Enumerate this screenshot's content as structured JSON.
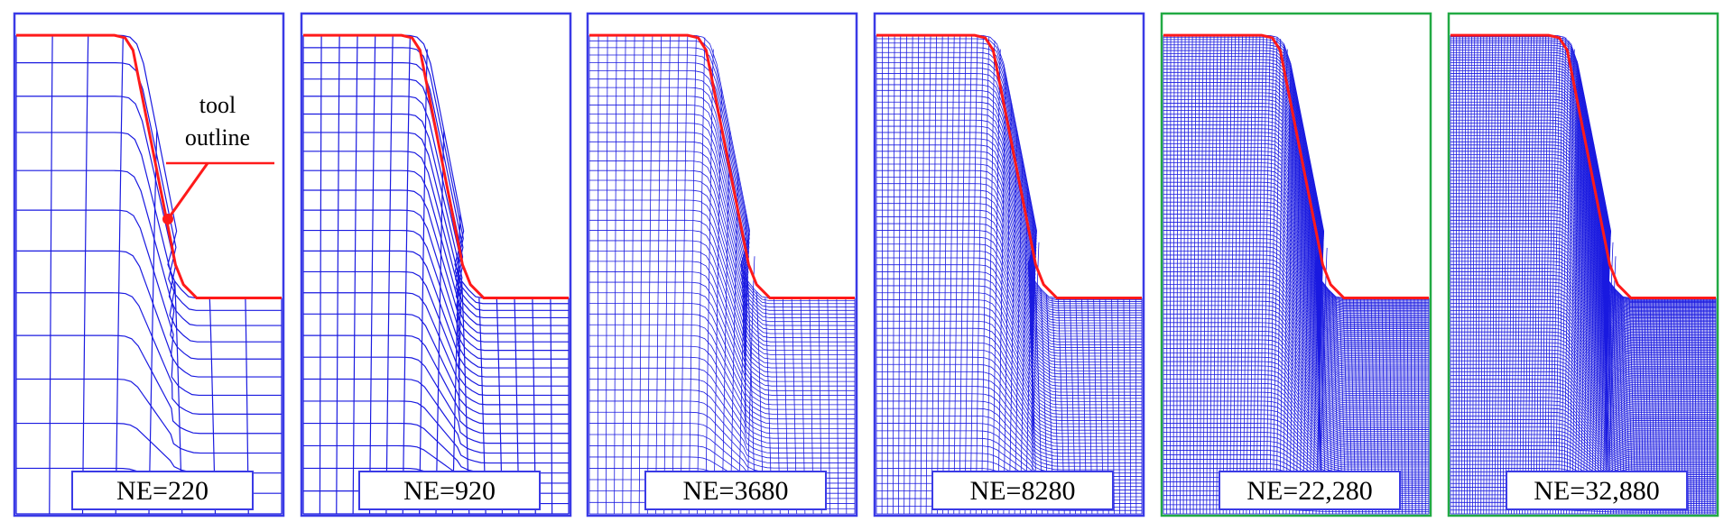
{
  "panels": [
    {
      "label": "NE=220",
      "frame": "#3a3ae6"
    },
    {
      "label": "NE=920",
      "frame": "#3a3ae6"
    },
    {
      "label": "NE=3680",
      "frame": "#3a3ae6"
    },
    {
      "label": "NE=8280",
      "frame": "#3a3ae6"
    },
    {
      "label": "NE=22,280",
      "frame": "#22aa44"
    },
    {
      "label": "NE=32,880",
      "frame": "#22aa44"
    }
  ],
  "annotation": {
    "lines": [
      "tool",
      "outline"
    ]
  }
}
